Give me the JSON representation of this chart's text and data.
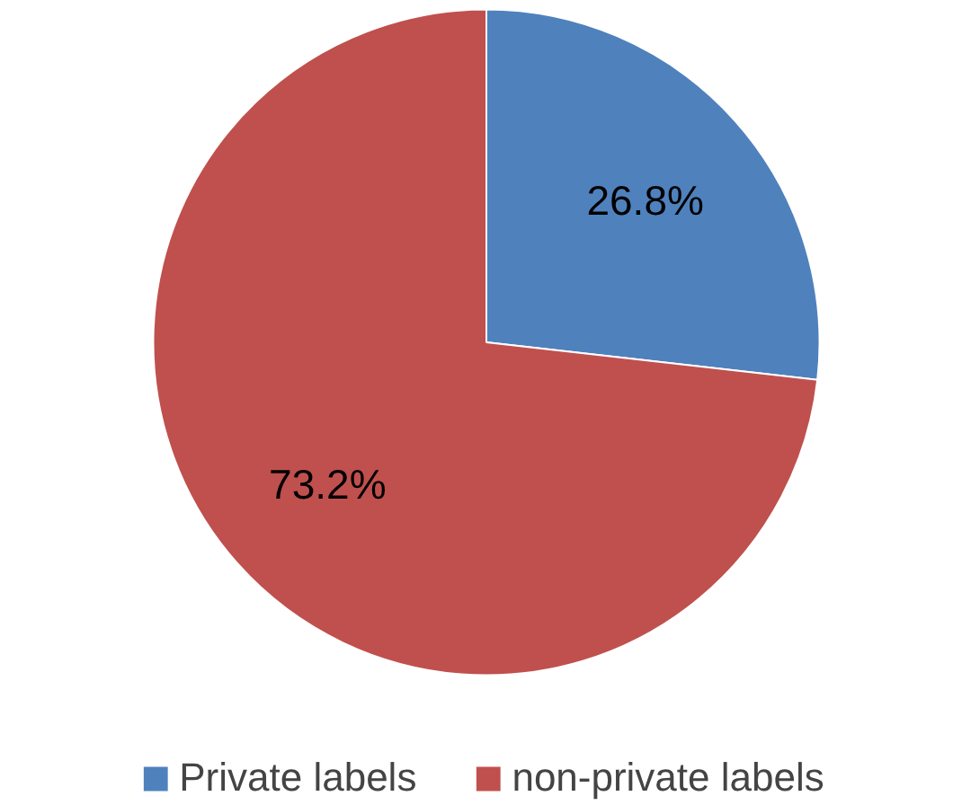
{
  "chart_data": {
    "type": "pie",
    "categories": [
      "Private labels",
      "non-private labels"
    ],
    "values": [
      26.8,
      73.2
    ],
    "colors": [
      "#4f81bd",
      "#c0504d"
    ],
    "value_labels": [
      "26.8%",
      "73.2%"
    ],
    "legend": "bottom"
  }
}
